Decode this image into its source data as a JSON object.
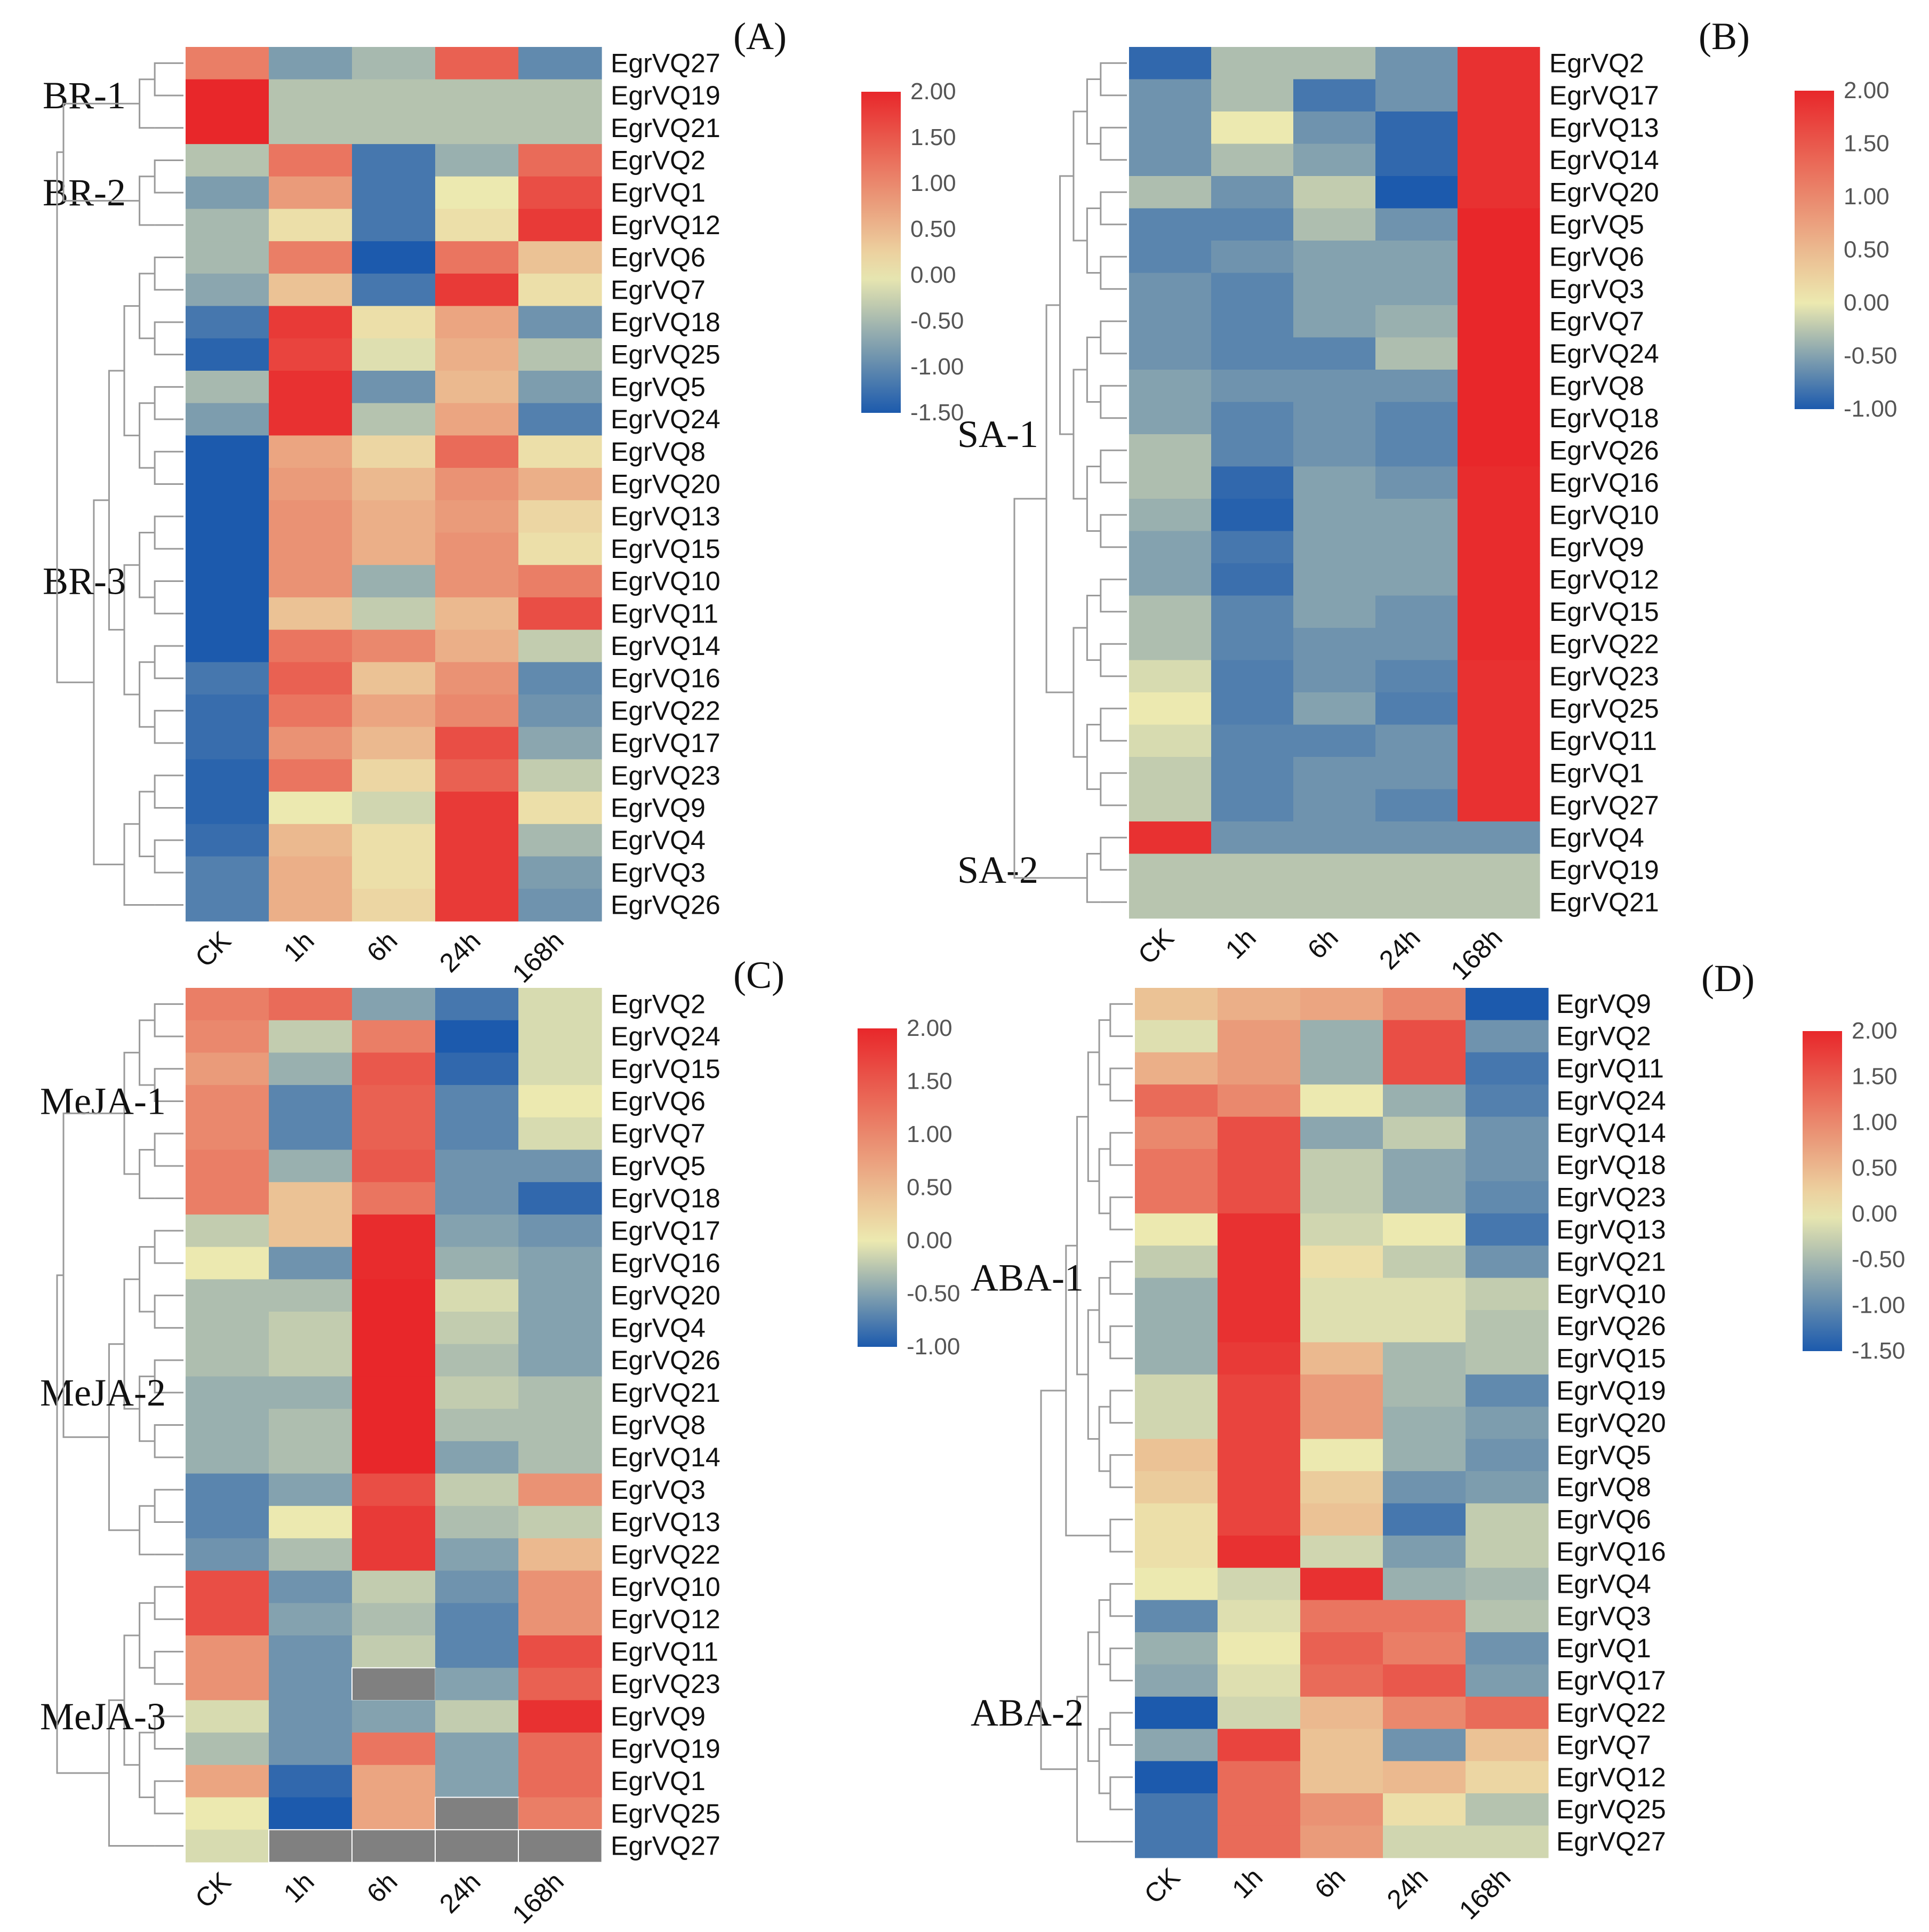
{
  "figure": "Heat maps of EgrVQ expression under BR, SA, MeJA and ABA treatments",
  "colors": {
    "high": "#e8272a",
    "mid": "#ece9b0",
    "low": "#1c5aad",
    "missing": "#808080",
    "tree_line": "#9a9a9a"
  },
  "chart_data": [
    {
      "type": "heatmap",
      "panel": "(A)",
      "columns": [
        "CK",
        "1h",
        "6h",
        "24h",
        "168h"
      ],
      "legend": {
        "ticks": [
          "2.00",
          "1.50",
          "1.00",
          "0.50",
          "0.00",
          "-0.50",
          "-1.00",
          "-1.50"
        ],
        "min": -1.5,
        "max": 2.0
      },
      "clusters": [
        {
          "label": "BR-1",
          "rows": [
            "EgrVQ27",
            "EgrVQ19",
            "EgrVQ21"
          ]
        },
        {
          "label": "BR-2",
          "rows": [
            "EgrVQ2",
            "EgrVQ1",
            "EgrVQ12"
          ]
        },
        {
          "label": "BR-3",
          "rows": [
            "EgrVQ6",
            "EgrVQ7",
            "EgrVQ18",
            "EgrVQ25",
            "EgrVQ5",
            "EgrVQ24",
            "EgrVQ8",
            "EgrVQ20",
            "EgrVQ13",
            "EgrVQ15",
            "EgrVQ10",
            "EgrVQ11",
            "EgrVQ14",
            "EgrVQ16",
            "EgrVQ22",
            "EgrVQ17",
            "EgrVQ23",
            "EgrVQ9",
            "EgrVQ4",
            "EgrVQ3",
            "EgrVQ26"
          ]
        }
      ],
      "rows": [
        "EgrVQ27",
        "EgrVQ19",
        "EgrVQ21",
        "EgrVQ2",
        "EgrVQ1",
        "EgrVQ12",
        "EgrVQ6",
        "EgrVQ7",
        "EgrVQ18",
        "EgrVQ25",
        "EgrVQ5",
        "EgrVQ24",
        "EgrVQ8",
        "EgrVQ20",
        "EgrVQ13",
        "EgrVQ15",
        "EgrVQ10",
        "EgrVQ11",
        "EgrVQ14",
        "EgrVQ16",
        "EgrVQ22",
        "EgrVQ17",
        "EgrVQ23",
        "EgrVQ9",
        "EgrVQ4",
        "EgrVQ3",
        "EgrVQ26"
      ],
      "values": [
        [
          1.1,
          -0.8,
          -0.5,
          1.4,
          -1.0
        ],
        [
          2.0,
          -0.4,
          -0.4,
          -0.4,
          -0.4
        ],
        [
          2.0,
          -0.4,
          -0.4,
          -0.4,
          -0.4
        ],
        [
          -0.4,
          1.2,
          -1.2,
          -0.6,
          1.3
        ],
        [
          -0.8,
          0.8,
          -1.2,
          0.0,
          1.6
        ],
        [
          -0.5,
          0.1,
          -1.2,
          0.1,
          1.8
        ],
        [
          -0.5,
          1.1,
          -1.6,
          1.2,
          0.4
        ],
        [
          -0.7,
          0.4,
          -1.2,
          1.8,
          0.1
        ],
        [
          -1.2,
          1.8,
          0.1,
          0.7,
          -0.9
        ],
        [
          -1.4,
          1.7,
          -0.1,
          0.6,
          -0.4
        ],
        [
          -0.5,
          1.9,
          -0.9,
          0.5,
          -0.8
        ],
        [
          -0.8,
          1.9,
          -0.4,
          0.7,
          -1.1
        ],
        [
          -1.5,
          0.7,
          0.2,
          1.3,
          0.1
        ],
        [
          -1.7,
          0.8,
          0.5,
          0.9,
          0.6
        ],
        [
          -1.7,
          0.9,
          0.6,
          0.8,
          0.2
        ],
        [
          -1.7,
          0.9,
          0.6,
          0.9,
          0.1
        ],
        [
          -1.5,
          0.9,
          -0.6,
          0.9,
          1.1
        ],
        [
          -1.5,
          0.4,
          -0.3,
          0.5,
          1.6
        ],
        [
          -1.5,
          1.2,
          1.0,
          0.6,
          -0.3
        ],
        [
          -1.2,
          1.4,
          0.4,
          0.9,
          -1.0
        ],
        [
          -1.3,
          1.2,
          0.7,
          1.0,
          -0.9
        ],
        [
          -1.3,
          0.9,
          0.5,
          1.6,
          -0.7
        ],
        [
          -1.4,
          1.2,
          0.2,
          1.4,
          -0.3
        ],
        [
          -1.4,
          0.0,
          -0.2,
          1.8,
          0.1
        ],
        [
          -1.3,
          0.5,
          0.1,
          1.8,
          -0.5
        ],
        [
          -1.1,
          0.6,
          0.1,
          1.8,
          -0.8
        ],
        [
          -1.1,
          0.6,
          0.2,
          1.8,
          -0.9
        ]
      ]
    },
    {
      "type": "heatmap",
      "panel": "(B)",
      "columns": [
        "CK",
        "1h",
        "6h",
        "24h",
        "168h"
      ],
      "legend": {
        "ticks": [
          "2.00",
          "1.50",
          "1.00",
          "0.50",
          "0.00",
          "-0.50",
          "-1.00"
        ],
        "min": -1.0,
        "max": 2.0
      },
      "clusters": [
        {
          "label": "SA-1",
          "rows": [
            "EgrVQ2",
            "EgrVQ17",
            "EgrVQ13",
            "EgrVQ14",
            "EgrVQ20",
            "EgrVQ5",
            "EgrVQ6",
            "EgrVQ3",
            "EgrVQ7",
            "EgrVQ24",
            "EgrVQ8",
            "EgrVQ18",
            "EgrVQ26",
            "EgrVQ16",
            "EgrVQ10",
            "EgrVQ9",
            "EgrVQ12",
            "EgrVQ15",
            "EgrVQ22",
            "EgrVQ23",
            "EgrVQ25",
            "EgrVQ11",
            "EgrVQ1",
            "EgrVQ27"
          ]
        },
        {
          "label": "SA-2",
          "rows": [
            "EgrVQ4",
            "EgrVQ19",
            "EgrVQ21"
          ]
        }
      ],
      "rows": [
        "EgrVQ2",
        "EgrVQ17",
        "EgrVQ13",
        "EgrVQ14",
        "EgrVQ20",
        "EgrVQ5",
        "EgrVQ6",
        "EgrVQ3",
        "EgrVQ7",
        "EgrVQ24",
        "EgrVQ8",
        "EgrVQ18",
        "EgrVQ26",
        "EgrVQ16",
        "EgrVQ10",
        "EgrVQ9",
        "EgrVQ12",
        "EgrVQ15",
        "EgrVQ22",
        "EgrVQ23",
        "EgrVQ25",
        "EgrVQ11",
        "EgrVQ1",
        "EgrVQ27",
        "EgrVQ4",
        "EgrVQ19",
        "EgrVQ21"
      ],
      "values": [
        [
          -0.9,
          -0.3,
          -0.3,
          -0.6,
          1.9
        ],
        [
          -0.6,
          -0.3,
          -0.8,
          -0.6,
          1.9
        ],
        [
          -0.6,
          0.0,
          -0.6,
          -0.9,
          1.9
        ],
        [
          -0.6,
          -0.3,
          -0.5,
          -0.9,
          1.9
        ],
        [
          -0.3,
          -0.6,
          -0.2,
          -1.0,
          1.9
        ],
        [
          -0.7,
          -0.7,
          -0.3,
          -0.6,
          2.0
        ],
        [
          -0.7,
          -0.6,
          -0.5,
          -0.5,
          2.0
        ],
        [
          -0.6,
          -0.7,
          -0.5,
          -0.5,
          2.0
        ],
        [
          -0.6,
          -0.7,
          -0.5,
          -0.4,
          2.0
        ],
        [
          -0.6,
          -0.7,
          -0.7,
          -0.3,
          2.0
        ],
        [
          -0.5,
          -0.6,
          -0.6,
          -0.6,
          2.0
        ],
        [
          -0.5,
          -0.7,
          -0.6,
          -0.7,
          2.0
        ],
        [
          -0.3,
          -0.7,
          -0.6,
          -0.7,
          2.0
        ],
        [
          -0.3,
          -0.9,
          -0.5,
          -0.6,
          1.95
        ],
        [
          -0.4,
          -0.95,
          -0.5,
          -0.5,
          1.95
        ],
        [
          -0.5,
          -0.8,
          -0.5,
          -0.5,
          1.95
        ],
        [
          -0.5,
          -0.85,
          -0.5,
          -0.5,
          1.95
        ],
        [
          -0.3,
          -0.7,
          -0.5,
          -0.6,
          1.95
        ],
        [
          -0.3,
          -0.7,
          -0.6,
          -0.6,
          1.95
        ],
        [
          -0.1,
          -0.75,
          -0.6,
          -0.7,
          1.9
        ],
        [
          0.0,
          -0.75,
          -0.5,
          -0.75,
          1.9
        ],
        [
          -0.1,
          -0.7,
          -0.7,
          -0.6,
          1.9
        ],
        [
          -0.2,
          -0.7,
          -0.6,
          -0.6,
          1.9
        ],
        [
          -0.2,
          -0.7,
          -0.6,
          -0.7,
          1.9
        ],
        [
          1.9,
          -0.6,
          -0.6,
          -0.6,
          -0.6
        ],
        [
          -0.25,
          -0.25,
          -0.25,
          -0.25,
          -0.25
        ],
        [
          -0.25,
          -0.25,
          -0.25,
          -0.25,
          -0.25
        ]
      ]
    },
    {
      "type": "heatmap",
      "panel": "(C)",
      "columns": [
        "CK",
        "1h",
        "6h",
        "24h",
        "168h"
      ],
      "legend": {
        "ticks": [
          "2.00",
          "1.50",
          "1.00",
          "0.50",
          "0.00",
          "-0.50",
          "-1.00"
        ],
        "min": -1.0,
        "max": 2.0
      },
      "clusters": [
        {
          "label": "MeJA-1",
          "rows": [
            "EgrVQ2",
            "EgrVQ24",
            "EgrVQ15",
            "EgrVQ6",
            "EgrVQ7",
            "EgrVQ5",
            "EgrVQ18"
          ]
        },
        {
          "label": "MeJA-2",
          "rows": [
            "EgrVQ17",
            "EgrVQ16",
            "EgrVQ20",
            "EgrVQ4",
            "EgrVQ26",
            "EgrVQ21",
            "EgrVQ8",
            "EgrVQ14",
            "EgrVQ3",
            "EgrVQ13",
            "EgrVQ22"
          ]
        },
        {
          "label": "MeJA-3",
          "rows": [
            "EgrVQ10",
            "EgrVQ12",
            "EgrVQ11",
            "EgrVQ23",
            "EgrVQ9",
            "EgrVQ19",
            "EgrVQ1",
            "EgrVQ25",
            "EgrVQ27"
          ]
        }
      ],
      "rows": [
        "EgrVQ2",
        "EgrVQ24",
        "EgrVQ15",
        "EgrVQ6",
        "EgrVQ7",
        "EgrVQ5",
        "EgrVQ18",
        "EgrVQ17",
        "EgrVQ16",
        "EgrVQ20",
        "EgrVQ4",
        "EgrVQ26",
        "EgrVQ21",
        "EgrVQ8",
        "EgrVQ14",
        "EgrVQ3",
        "EgrVQ13",
        "EgrVQ22",
        "EgrVQ10",
        "EgrVQ12",
        "EgrVQ11",
        "EgrVQ23",
        "EgrVQ9",
        "EgrVQ19",
        "EgrVQ1",
        "EgrVQ25",
        "EgrVQ27"
      ],
      "values": [
        [
          1.1,
          1.3,
          -0.5,
          -0.8,
          -0.1
        ],
        [
          1.0,
          -0.2,
          1.1,
          -1.0,
          -0.1
        ],
        [
          0.8,
          -0.4,
          1.5,
          -0.9,
          -0.1
        ],
        [
          1.0,
          -0.7,
          1.4,
          -0.7,
          0.0
        ],
        [
          1.0,
          -0.7,
          1.4,
          -0.7,
          -0.1
        ],
        [
          1.1,
          -0.4,
          1.5,
          -0.6,
          -0.6
        ],
        [
          1.1,
          0.4,
          1.2,
          -0.6,
          -0.9
        ],
        [
          -0.2,
          0.4,
          1.95,
          -0.5,
          -0.6
        ],
        [
          0.0,
          -0.6,
          1.95,
          -0.4,
          -0.5
        ],
        [
          -0.3,
          -0.3,
          2.0,
          -0.1,
          -0.5
        ],
        [
          -0.3,
          -0.2,
          2.0,
          -0.2,
          -0.5
        ],
        [
          -0.3,
          -0.2,
          2.0,
          -0.3,
          -0.5
        ],
        [
          -0.4,
          -0.4,
          2.0,
          -0.2,
          -0.3
        ],
        [
          -0.4,
          -0.3,
          2.0,
          -0.3,
          -0.3
        ],
        [
          -0.4,
          -0.3,
          2.0,
          -0.5,
          -0.3
        ],
        [
          -0.7,
          -0.5,
          1.6,
          -0.2,
          0.9
        ],
        [
          -0.7,
          0.0,
          1.8,
          -0.3,
          -0.2
        ],
        [
          -0.6,
          -0.3,
          1.8,
          -0.5,
          0.5
        ],
        [
          1.6,
          -0.6,
          -0.2,
          -0.6,
          0.9
        ],
        [
          1.6,
          -0.5,
          -0.3,
          -0.7,
          0.9
        ],
        [
          0.9,
          -0.6,
          -0.2,
          -0.7,
          1.6
        ],
        [
          0.9,
          -0.6,
          null,
          -0.5,
          1.4
        ],
        [
          -0.1,
          -0.6,
          -0.5,
          -0.2,
          1.9
        ],
        [
          -0.3,
          -0.6,
          1.2,
          -0.5,
          1.3
        ],
        [
          0.7,
          -0.9,
          0.7,
          -0.5,
          1.3
        ],
        [
          0.0,
          -1.0,
          0.7,
          null,
          1.1
        ],
        [
          -0.1,
          null,
          null,
          null,
          null
        ]
      ]
    },
    {
      "type": "heatmap",
      "panel": "(D)",
      "columns": [
        "CK",
        "1h",
        "6h",
        "24h",
        "168h"
      ],
      "legend": {
        "ticks": [
          "2.00",
          "1.50",
          "1.00",
          "0.50",
          "0.00",
          "-0.50",
          "-1.00",
          "-1.50"
        ],
        "min": -1.5,
        "max": 2.0
      },
      "clusters": [
        {
          "label": "ABA-1",
          "rows": [
            "EgrVQ9",
            "EgrVQ2",
            "EgrVQ11",
            "EgrVQ24",
            "EgrVQ14",
            "EgrVQ18",
            "EgrVQ23",
            "EgrVQ13",
            "EgrVQ21",
            "EgrVQ10",
            "EgrVQ26",
            "EgrVQ15",
            "EgrVQ19",
            "EgrVQ20",
            "EgrVQ5",
            "EgrVQ8",
            "EgrVQ6",
            "EgrVQ16"
          ]
        },
        {
          "label": "ABA-2",
          "rows": [
            "EgrVQ4",
            "EgrVQ3",
            "EgrVQ1",
            "EgrVQ17",
            "EgrVQ22",
            "EgrVQ7",
            "EgrVQ12",
            "EgrVQ25",
            "EgrVQ27"
          ]
        }
      ],
      "rows": [
        "EgrVQ9",
        "EgrVQ2",
        "EgrVQ11",
        "EgrVQ24",
        "EgrVQ14",
        "EgrVQ18",
        "EgrVQ23",
        "EgrVQ13",
        "EgrVQ21",
        "EgrVQ10",
        "EgrVQ26",
        "EgrVQ15",
        "EgrVQ19",
        "EgrVQ20",
        "EgrVQ5",
        "EgrVQ8",
        "EgrVQ6",
        "EgrVQ16",
        "EgrVQ4",
        "EgrVQ3",
        "EgrVQ1",
        "EgrVQ17",
        "EgrVQ22",
        "EgrVQ7",
        "EgrVQ12",
        "EgrVQ25",
        "EgrVQ27"
      ],
      "values": [
        [
          0.4,
          0.6,
          0.7,
          1.0,
          -1.5
        ],
        [
          -0.1,
          0.8,
          -0.6,
          1.6,
          -0.9
        ],
        [
          0.6,
          0.8,
          -0.6,
          1.6,
          -1.2
        ],
        [
          1.3,
          1.0,
          0.0,
          -0.6,
          -1.1
        ],
        [
          1.0,
          1.6,
          -0.7,
          -0.3,
          -0.9
        ],
        [
          1.2,
          1.6,
          -0.3,
          -0.7,
          -0.9
        ],
        [
          1.2,
          1.6,
          -0.3,
          -0.7,
          -1.0
        ],
        [
          0.0,
          1.9,
          -0.2,
          0.0,
          -1.2
        ],
        [
          -0.3,
          1.9,
          0.1,
          -0.3,
          -0.9
        ],
        [
          -0.6,
          1.9,
          -0.1,
          -0.1,
          -0.3
        ],
        [
          -0.6,
          1.9,
          -0.1,
          -0.1,
          -0.4
        ],
        [
          -0.6,
          1.8,
          0.5,
          -0.5,
          -0.4
        ],
        [
          -0.2,
          1.7,
          0.8,
          -0.5,
          -1.0
        ],
        [
          -0.2,
          1.7,
          0.8,
          -0.6,
          -0.8
        ],
        [
          0.4,
          1.7,
          0.0,
          -0.6,
          -0.9
        ],
        [
          0.3,
          1.7,
          0.3,
          -0.9,
          -0.8
        ],
        [
          0.1,
          1.7,
          0.4,
          -1.2,
          -0.3
        ],
        [
          0.1,
          1.9,
          -0.2,
          -0.8,
          -0.3
        ],
        [
          0.0,
          -0.2,
          1.9,
          -0.6,
          -0.5
        ],
        [
          -1.0,
          -0.1,
          1.2,
          1.2,
          -0.4
        ],
        [
          -0.6,
          0.0,
          1.4,
          1.1,
          -0.9
        ],
        [
          -0.7,
          -0.1,
          1.3,
          1.5,
          -0.8
        ],
        [
          -1.5,
          -0.2,
          0.5,
          1.0,
          1.3
        ],
        [
          -0.7,
          1.7,
          0.4,
          -0.9,
          0.4
        ],
        [
          -1.6,
          1.3,
          0.4,
          0.5,
          0.2
        ],
        [
          -1.2,
          1.3,
          0.9,
          0.1,
          -0.4
        ],
        [
          -1.2,
          1.3,
          0.8,
          -0.2,
          -0.2
        ]
      ]
    }
  ]
}
